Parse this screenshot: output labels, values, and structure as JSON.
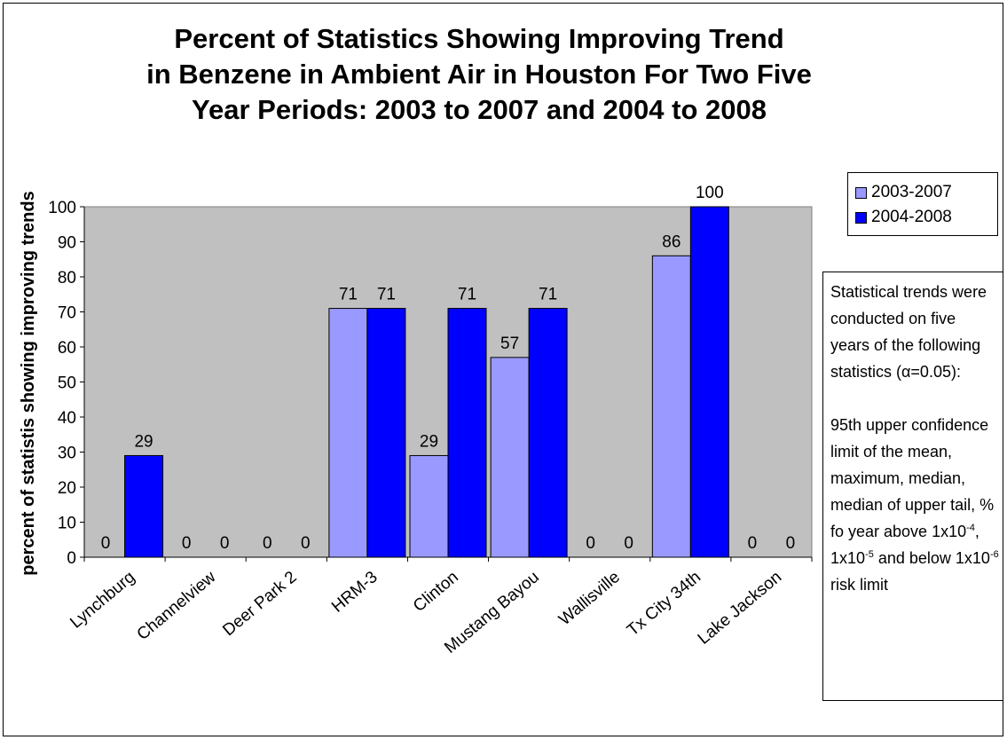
{
  "chart_data": {
    "type": "bar",
    "title": [
      "Percent of Statistics Showing Improving Trend",
      "in Benzene in Ambient Air in Houston For Two Five",
      "Year Periods: 2003 to 2007 and 2004 to 2008"
    ],
    "ylabel": "percent of statistis showing improving trends",
    "xlabel": "",
    "ylim": [
      0,
      100
    ],
    "yticks": [
      "0",
      "10",
      "20",
      "30",
      "40",
      "50",
      "60",
      "70",
      "80",
      "90",
      "100"
    ],
    "categories": [
      "Lynchburg",
      "Channelview",
      "Deer Park 2",
      "HRM-3",
      "Clinton",
      "Mustang Bayou",
      "Wallisville",
      "Tx City 34th",
      "Lake Jackson"
    ],
    "series": [
      {
        "name": "2003-2007",
        "color": "#9999ff",
        "values": [
          0,
          0,
          0,
          71,
          29,
          57,
          0,
          86,
          0
        ],
        "labels": [
          "0",
          "0",
          "0",
          "71",
          "29",
          "57",
          "0",
          "86",
          "0"
        ]
      },
      {
        "name": "2004-2008",
        "color": "#0000ff",
        "values": [
          29,
          0,
          0,
          71,
          71,
          71,
          0,
          100,
          0
        ],
        "labels": [
          "29",
          "0",
          "0",
          "71",
          "71",
          "71",
          "0",
          "100",
          "0"
        ]
      }
    ],
    "grid": false,
    "plot_background": "#c0c0c0",
    "legend_position": "right"
  },
  "note": {
    "line1": "Statistical trends were conducted on five years of the following statistics",
    "alpha_symbol": "α",
    "alpha_rest": "=0.05):",
    "line2": "95th upper confidence limit of the mean, maximum, median, median of upper tail, % fo year above 1x10",
    "exp1": "-4",
    "sep1": ", 1x10",
    "exp2": "-5",
    "and_below": " and below 1x10",
    "exp3": "-6",
    "tail": " risk limit"
  }
}
